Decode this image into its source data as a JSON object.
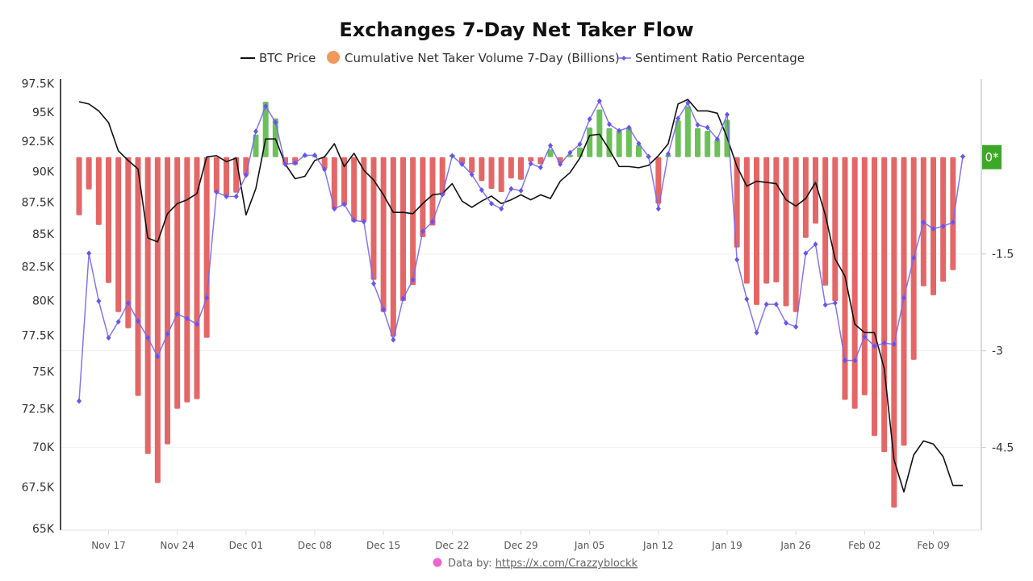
{
  "chart_data": {
    "type": "bar+line",
    "title": "Exchanges 7-Day Net Taker Flow",
    "legend": [
      {
        "name": "BTC Price",
        "color": "#111111",
        "marker": "line"
      },
      {
        "name": "Cumulative Net Taker Volume 7-Day (Billions)",
        "color": "#F0995A",
        "marker": "circle"
      },
      {
        "name": "Sentiment Ratio Percentage",
        "color": "#7766F0",
        "marker": "line-diamond"
      }
    ],
    "legend_position": "top",
    "colors": {
      "positive_bar": "#6CC05A",
      "negative_bar": "#E46767",
      "price": "#111111",
      "sentiment": "#7766F0",
      "zero_badge": "#3DA827"
    },
    "dates": [
      "Nov 14",
      "Nov 15",
      "Nov 16",
      "Nov 17",
      "Nov 18",
      "Nov 19",
      "Nov 20",
      "Nov 21",
      "Nov 22",
      "Nov 23",
      "Nov 24",
      "Nov 25",
      "Nov 26",
      "Nov 27",
      "Nov 28",
      "Nov 29",
      "Nov 30",
      "Dec 01",
      "Dec 02",
      "Dec 03",
      "Dec 04",
      "Dec 05",
      "Dec 06",
      "Dec 07",
      "Dec 08",
      "Dec 09",
      "Dec 10",
      "Dec 11",
      "Dec 12",
      "Dec 13",
      "Dec 14",
      "Dec 15",
      "Dec 16",
      "Dec 17",
      "Dec 18",
      "Dec 19",
      "Dec 20",
      "Dec 21",
      "Dec 22",
      "Dec 23",
      "Dec 24",
      "Dec 25",
      "Dec 26",
      "Dec 27",
      "Dec 28",
      "Dec 29",
      "Dec 30",
      "Dec 31",
      "Jan 01",
      "Jan 02",
      "Jan 03",
      "Jan 04",
      "Jan 05",
      "Jan 06",
      "Jan 07",
      "Jan 08",
      "Jan 09",
      "Jan 10",
      "Jan 11",
      "Jan 12",
      "Jan 13",
      "Jan 14",
      "Jan 15",
      "Jan 16",
      "Jan 17",
      "Jan 18",
      "Jan 19",
      "Jan 20",
      "Jan 21",
      "Jan 22",
      "Jan 23",
      "Jan 24",
      "Jan 25",
      "Jan 26",
      "Jan 27",
      "Jan 28",
      "Jan 29",
      "Jan 30",
      "Jan 31",
      "Feb 01",
      "Feb 02",
      "Feb 03",
      "Feb 04",
      "Feb 05",
      "Feb 06",
      "Feb 07",
      "Feb 08",
      "Feb 09",
      "Feb 10",
      "Feb 11",
      "Feb 12"
    ],
    "x_tick_labels": [
      "Nov 17",
      "Nov 24",
      "Dec 01",
      "Dec 08",
      "Dec 15",
      "Dec 22",
      "Dec 29",
      "Jan 05",
      "Jan 12",
      "Jan 19",
      "Jan 26",
      "Feb 02",
      "Feb 09"
    ],
    "series": [
      {
        "name": "BTC Price",
        "type": "line",
        "axis": "left",
        "unit": "K",
        "values": [
          95.9,
          95.7,
          95.1,
          94.1,
          91.7,
          90.9,
          90.2,
          84.7,
          84.4,
          86.6,
          87.4,
          87.7,
          88.2,
          91.2,
          91.3,
          90.8,
          91.1,
          86.5,
          88.6,
          92.7,
          92.7,
          90.6,
          89.4,
          89.6,
          90.9,
          91.2,
          92.3,
          90.4,
          91.5,
          90.1,
          89.3,
          88.1,
          86.7,
          86.7,
          86.6,
          87.4,
          88.1,
          88.2,
          89.0,
          87.6,
          87.1,
          87.6,
          88.0,
          87.4,
          87.7,
          88.1,
          87.7,
          88.1,
          87.8,
          89.2,
          89.9,
          91.1,
          93.0,
          93.1,
          91.8,
          90.4,
          90.4,
          90.3,
          90.5,
          91.3,
          92.3,
          95.7,
          96.1,
          95.1,
          95.1,
          94.9,
          92.8,
          90.4,
          88.8,
          89.2,
          89.1,
          89.0,
          87.7,
          87.2,
          87.8,
          89.1,
          86.5,
          83.1,
          81.8,
          78.3,
          77.7,
          77.7,
          75.2,
          69.2,
          67.2,
          69.5,
          70.4,
          70.2,
          69.4,
          67.6,
          67.6
        ]
      },
      {
        "name": "Cumulative Net Taker Volume 7-Day (Billions)",
        "type": "bar",
        "axis": "right",
        "values": [
          -0.9,
          -0.5,
          -1.05,
          -1.95,
          -2.4,
          -2.65,
          -3.7,
          -4.6,
          -5.05,
          -4.45,
          -3.9,
          -3.8,
          -3.75,
          -2.8,
          -0.55,
          -0.6,
          -0.55,
          -0.28,
          0.35,
          0.86,
          0.6,
          -0.12,
          -0.12,
          0.03,
          0.02,
          -0.18,
          -0.8,
          -0.75,
          -1.0,
          -1.0,
          -1.9,
          -2.4,
          -2.78,
          -2.23,
          -1.98,
          -1.24,
          -1.06,
          -0.59,
          0.04,
          -0.11,
          -0.24,
          -0.37,
          -0.49,
          -0.54,
          -0.33,
          -0.35,
          -0.07,
          -0.11,
          0.12,
          -0.09,
          0.04,
          0.15,
          0.46,
          0.74,
          0.45,
          0.41,
          0.46,
          0.19,
          0.02,
          -0.72,
          0.04,
          0.57,
          0.79,
          0.45,
          0.41,
          0.27,
          0.58,
          -1.4,
          -1.96,
          -2.29,
          -1.96,
          -1.94,
          -2.31,
          -2.4,
          -1.25,
          -1.03,
          -1.99,
          -2.23,
          -3.76,
          -3.9,
          -3.69,
          -4.32,
          -4.57,
          -5.43,
          -4.47,
          -3.14,
          -2.0,
          -2.14,
          -1.93,
          -1.75,
          0.02
        ]
      },
      {
        "name": "Sentiment Ratio Percentage",
        "type": "line",
        "axis": "right",
        "values": [
          -3.78,
          -1.49,
          -2.23,
          -2.8,
          -2.55,
          -2.26,
          -2.54,
          -2.8,
          -3.09,
          -2.74,
          -2.43,
          -2.5,
          -2.59,
          -2.18,
          -0.54,
          -0.61,
          -0.61,
          -0.28,
          0.4,
          0.79,
          0.54,
          -0.11,
          -0.09,
          0.03,
          0.03,
          -0.19,
          -0.8,
          -0.73,
          -0.98,
          -1.0,
          -1.96,
          -2.36,
          -2.83,
          -2.19,
          -1.9,
          -1.15,
          -1.0,
          -0.58,
          0.02,
          -0.11,
          -0.27,
          -0.51,
          -0.72,
          -0.8,
          -0.49,
          -0.52,
          -0.1,
          -0.16,
          0.18,
          -0.11,
          0.07,
          0.2,
          0.59,
          0.87,
          0.51,
          0.41,
          0.46,
          0.21,
          0.01,
          -0.8,
          0.05,
          0.6,
          0.84,
          0.5,
          0.46,
          0.28,
          0.66,
          -1.59,
          -2.2,
          -2.72,
          -2.28,
          -2.28,
          -2.57,
          -2.63,
          -1.49,
          -1.35,
          -2.29,
          -2.26,
          -3.15,
          -3.15,
          -2.78,
          -2.93,
          -2.88,
          -2.9,
          -2.18,
          -1.56,
          -1.01,
          -1.11,
          -1.07,
          -1.01,
          0.01
        ]
      }
    ],
    "left_axis": {
      "scale": "log",
      "ylim": [
        64.9,
        97.9
      ],
      "ticks": [
        97.5,
        95,
        92.5,
        90,
        87.5,
        85,
        82.5,
        80,
        77.5,
        75,
        72.5,
        70,
        67.5,
        65
      ],
      "tick_labels": [
        "97.5K",
        "95K",
        "92.5K",
        "90K",
        "87.5K",
        "85K",
        "82.5K",
        "80K",
        "77.5K",
        "75K",
        "72.5K",
        "70K",
        "67.5K",
        "65K"
      ]
    },
    "right_axis": {
      "scale": "linear",
      "ylim": [
        -5.78,
        1.21
      ],
      "ticks": [
        -1.5,
        -3,
        -4.5
      ],
      "tick_labels": [
        "-1.5",
        "-3",
        "-4.5"
      ],
      "zero_badge_label": "0*"
    },
    "grid": true
  },
  "footer": {
    "prefix": "Data by: ",
    "link_text": "https://x.com/Crazzyblockk"
  }
}
